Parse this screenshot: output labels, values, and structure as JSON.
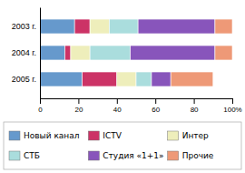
{
  "chart_data": {
    "type": "bar",
    "orientation": "horizontal",
    "stacked": true,
    "categories": [
      "2005 г.",
      "2004 г.",
      "2003 г."
    ],
    "series": [
      {
        "name": "Новый канал",
        "color": "#6699cc",
        "values": [
          22,
          13,
          18
        ]
      },
      {
        "name": "ICTV",
        "color": "#cc3366",
        "values": [
          18,
          3,
          8
        ]
      },
      {
        "name": "Интер",
        "color": "#eeeebb",
        "values": [
          10,
          10,
          10
        ]
      },
      {
        "name": "СТБ",
        "color": "#aadddd",
        "values": [
          8,
          21,
          15
        ]
      },
      {
        "name": "Студия «1+1»",
        "color": "#8855bb",
        "values": [
          10,
          44,
          40
        ]
      },
      {
        "name": "Прочие",
        "color": "#ee9977",
        "values": [
          22,
          9,
          9
        ]
      }
    ],
    "xlim": [
      0,
      100
    ],
    "xticks": [
      0,
      20,
      40,
      60,
      80,
      {
        "value": 100,
        "label": "100%"
      }
    ],
    "legend": "bottom",
    "grid": false
  }
}
